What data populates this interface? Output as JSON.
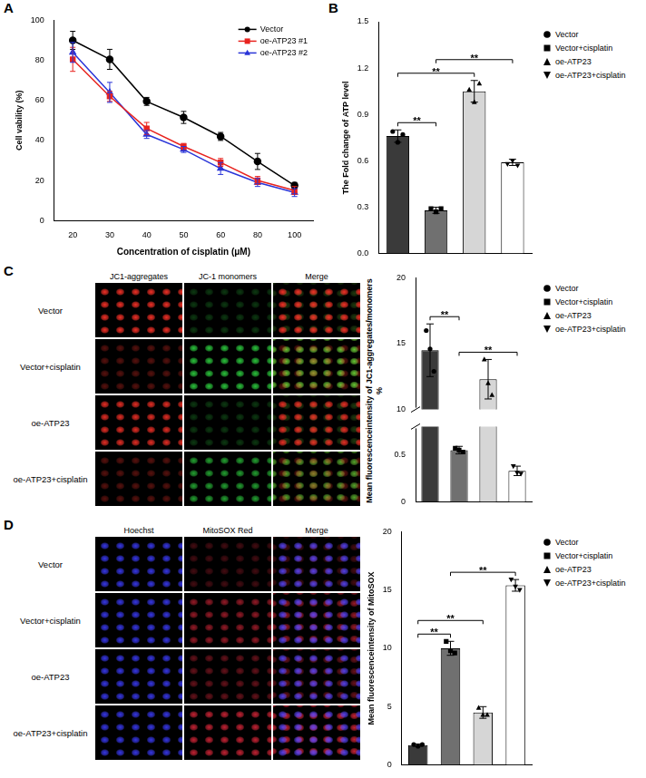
{
  "chart_data": [
    {
      "panel": "A",
      "type": "line",
      "x_label": "Concentration of cisplatin (μM)",
      "y_label": "Cell vability (%)",
      "categories": [
        20,
        30,
        40,
        50,
        60,
        80,
        100
      ],
      "ylim": [
        0,
        100
      ],
      "yticks": [
        0,
        20,
        40,
        60,
        80,
        100
      ],
      "grid": false,
      "legend": "upper right",
      "series": [
        {
          "name": "Vector",
          "color": "#000000",
          "marker": "circle",
          "values": [
            90,
            80.5,
            59.5,
            51.5,
            42,
            29.5,
            17.5
          ],
          "errors": [
            4.5,
            5,
            2,
            3,
            2,
            4,
            1.5
          ]
        },
        {
          "name": "oe-ATP23 #1",
          "color": "#e8231f",
          "marker": "square",
          "values": [
            80.5,
            62,
            46,
            37,
            29,
            20,
            15
          ],
          "errors": [
            6,
            2.5,
            3,
            1.5,
            2,
            2,
            2
          ]
        },
        {
          "name": "oe-ATP23 #2",
          "color": "#2a35d8",
          "marker": "triangle",
          "values": [
            84,
            64,
            43,
            35.5,
            26,
            19,
            14
          ],
          "errors": [
            5,
            5,
            2,
            1.5,
            3,
            2,
            2
          ]
        }
      ]
    },
    {
      "panel": "B",
      "type": "bar",
      "y_label": "The Fold change of ATP level",
      "categories": [
        "Vector",
        "Vector+cisplatin",
        "oe-ATP23",
        "oe-ATP23+cisplatin"
      ],
      "values": [
        0.76,
        0.28,
        1.05,
        0.59
      ],
      "errors": [
        0.04,
        0.02,
        0.07,
        0.02
      ],
      "points": [
        [
          0.79,
          0.72,
          0.77
        ],
        [
          0.29,
          0.27,
          0.29
        ],
        [
          1.06,
          0.98,
          1.1
        ],
        [
          0.58,
          0.6,
          0.57
        ]
      ],
      "colors": [
        "#3a3a3a",
        "#707070",
        "#d6d6d6",
        "#ffffff"
      ],
      "markers": [
        "circle",
        "square",
        "triangle",
        "triangle-down"
      ],
      "ylim": [
        0,
        1.5
      ],
      "yticks": [
        {
          "value": 0,
          "label": "0.0"
        },
        0.3,
        0.6,
        0.9,
        1.2,
        1.5
      ],
      "annotations": [
        {
          "from": 0,
          "to": 1,
          "text": "**"
        },
        {
          "from": 0,
          "to": 2,
          "text": "**"
        },
        {
          "from": 1,
          "to": 3,
          "text": "**"
        }
      ],
      "legend": "right",
      "tick_labels": "y",
      "grid": false
    },
    {
      "panel": "C",
      "type": "bar",
      "y_label": "Mean fluorescenceintensity of JC1-aggregates/monomers %",
      "categories": [
        "Vector",
        "Vector+cisplatin",
        "oe-ATP23",
        "oe-ATP23+cisplatin"
      ],
      "values": [
        14.5,
        0.55,
        12.3,
        0.33
      ],
      "errors": [
        2.0,
        0.04,
        1.5,
        0.05
      ],
      "points": [
        [
          16.0,
          14.6,
          12.9
        ],
        [
          0.57,
          0.55,
          0.53
        ],
        [
          13.8,
          12.0,
          11.1
        ],
        [
          0.38,
          0.31,
          0.3
        ]
      ],
      "colors": [
        "#3a3a3a",
        "#707070",
        "#d6d6d6",
        "#ffffff"
      ],
      "markers": [
        "circle",
        "square",
        "triangle",
        "triangle-down"
      ],
      "ylim": [
        0,
        20
      ],
      "yticks": [
        0,
        0.5,
        10,
        15,
        20
      ],
      "axis_break": [
        0.8,
        10
      ],
      "annotations": [
        {
          "from": 0,
          "to": 1,
          "text": "**"
        },
        {
          "from": 1,
          "to": 3,
          "text": "**"
        }
      ],
      "legend": "right",
      "tick_labels": "y",
      "grid": false
    },
    {
      "panel": "D",
      "type": "bar",
      "y_label": "Mean fluorescenceintensity of MitoSOX",
      "categories": [
        "Vector",
        "Vector+cisplatin",
        "oe-ATP23",
        "oe-ATP23+cisplatin"
      ],
      "values": [
        1.7,
        10.0,
        4.5,
        15.4
      ],
      "errors": [
        0.1,
        0.6,
        0.5,
        0.5
      ],
      "points": [
        [
          1.75,
          1.6,
          1.75
        ],
        [
          10.6,
          9.8,
          9.6
        ],
        [
          4.9,
          4.3,
          4.3
        ],
        [
          15.9,
          15.3,
          15.0
        ]
      ],
      "colors": [
        "#3a3a3a",
        "#707070",
        "#d6d6d6",
        "#ffffff"
      ],
      "markers": [
        "circle",
        "square",
        "triangle",
        "triangle-down"
      ],
      "ylim": [
        0,
        20
      ],
      "yticks": [
        0,
        5,
        10,
        15,
        20
      ],
      "annotations": [
        {
          "from": 0,
          "to": 1,
          "text": "**"
        },
        {
          "from": 0,
          "to": 2,
          "text": "**"
        },
        {
          "from": 1,
          "to": 3,
          "text": "**"
        }
      ],
      "legend": "right",
      "tick_labels": "y",
      "grid": false
    }
  ],
  "image_grids": [
    {
      "panel": "C",
      "columns": [
        "JC1-aggregates",
        "JC-1 monomers",
        "Merge"
      ],
      "rows": [
        "Vector",
        "Vector+cisplatin",
        "oe-ATP23",
        "oe-ATP23+cisplatin"
      ]
    },
    {
      "panel": "D",
      "columns": [
        "Hoechst",
        "MitoSOX Red",
        "Merge"
      ],
      "rows": [
        "Vector",
        "Vector+cisplatin",
        "oe-ATP23",
        "oe-ATP23+cisplatin"
      ]
    }
  ]
}
